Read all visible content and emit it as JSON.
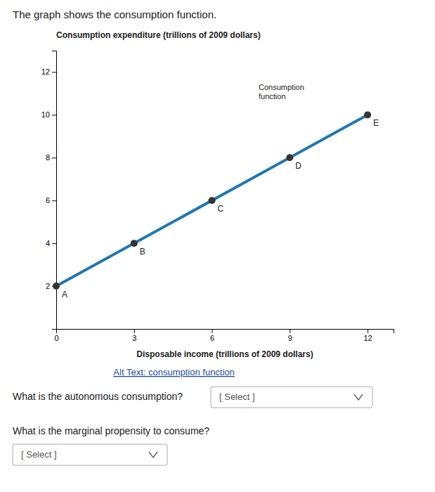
{
  "chart_data": {
    "type": "line",
    "title": "The graph shows the consumption function.",
    "x_label": "Disposable income (trillions of 2009 dollars)",
    "y_label": "Consumption expenditure (trillions of 2009 dollars)",
    "series": [
      {
        "type": "line",
        "x": [
          0,
          12
        ],
        "values": [
          2,
          10
        ]
      },
      {
        "type": "scatter",
        "x": [
          0,
          3,
          6,
          9,
          12
        ],
        "values": [
          2,
          4,
          6,
          8,
          10
        ],
        "labels": [
          "A",
          "B",
          "C",
          "D",
          "E"
        ]
      }
    ],
    "annotations": [
      {
        "text": "Consumption\nfunction",
        "x": 7.8,
        "y": 10.6
      }
    ],
    "xlim": [
      0,
      13
    ],
    "ylim": [
      0,
      13
    ],
    "xticks": [
      0,
      3,
      6,
      9,
      12
    ],
    "yticks": [
      2,
      4,
      6,
      8,
      10,
      12
    ],
    "grid": false
  },
  "page": {
    "link": "Alt Text: consumption function",
    "questions": [
      {
        "text": "What is the autonomous consumption?",
        "select": "[ Select ]"
      },
      {
        "text": "What is the marginal propensity to consume?",
        "select": "[ Select ]"
      }
    ]
  }
}
